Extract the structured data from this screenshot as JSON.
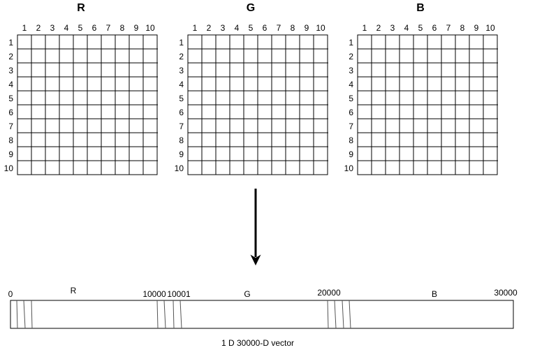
{
  "grids": [
    {
      "title": "R",
      "col_labels": [
        "1",
        "2",
        "3",
        "4",
        "5",
        "6",
        "7",
        "8",
        "9",
        "10"
      ],
      "row_labels": [
        "1",
        "2",
        "3",
        "4",
        "5",
        "6",
        "7",
        "8",
        "9",
        "10"
      ]
    },
    {
      "title": "G",
      "col_labels": [
        "1",
        "2",
        "3",
        "4",
        "5",
        "6",
        "7",
        "8",
        "9",
        "10"
      ],
      "row_labels": [
        "1",
        "2",
        "3",
        "4",
        "5",
        "6",
        "7",
        "8",
        "9",
        "10"
      ]
    },
    {
      "title": "B",
      "col_labels": [
        "1",
        "2",
        "3",
        "4",
        "5",
        "6",
        "7",
        "8",
        "9",
        "10"
      ],
      "row_labels": [
        "1",
        "2",
        "3",
        "4",
        "5",
        "6",
        "7",
        "8",
        "9",
        "10"
      ]
    }
  ],
  "vector": {
    "index_labels": [
      "0",
      "10000",
      "10001",
      "20000",
      "30000"
    ],
    "segment_labels": [
      "R",
      "G",
      "B"
    ],
    "caption": "1 D 30000-D vector"
  },
  "arrow": {
    "direction": "down"
  }
}
